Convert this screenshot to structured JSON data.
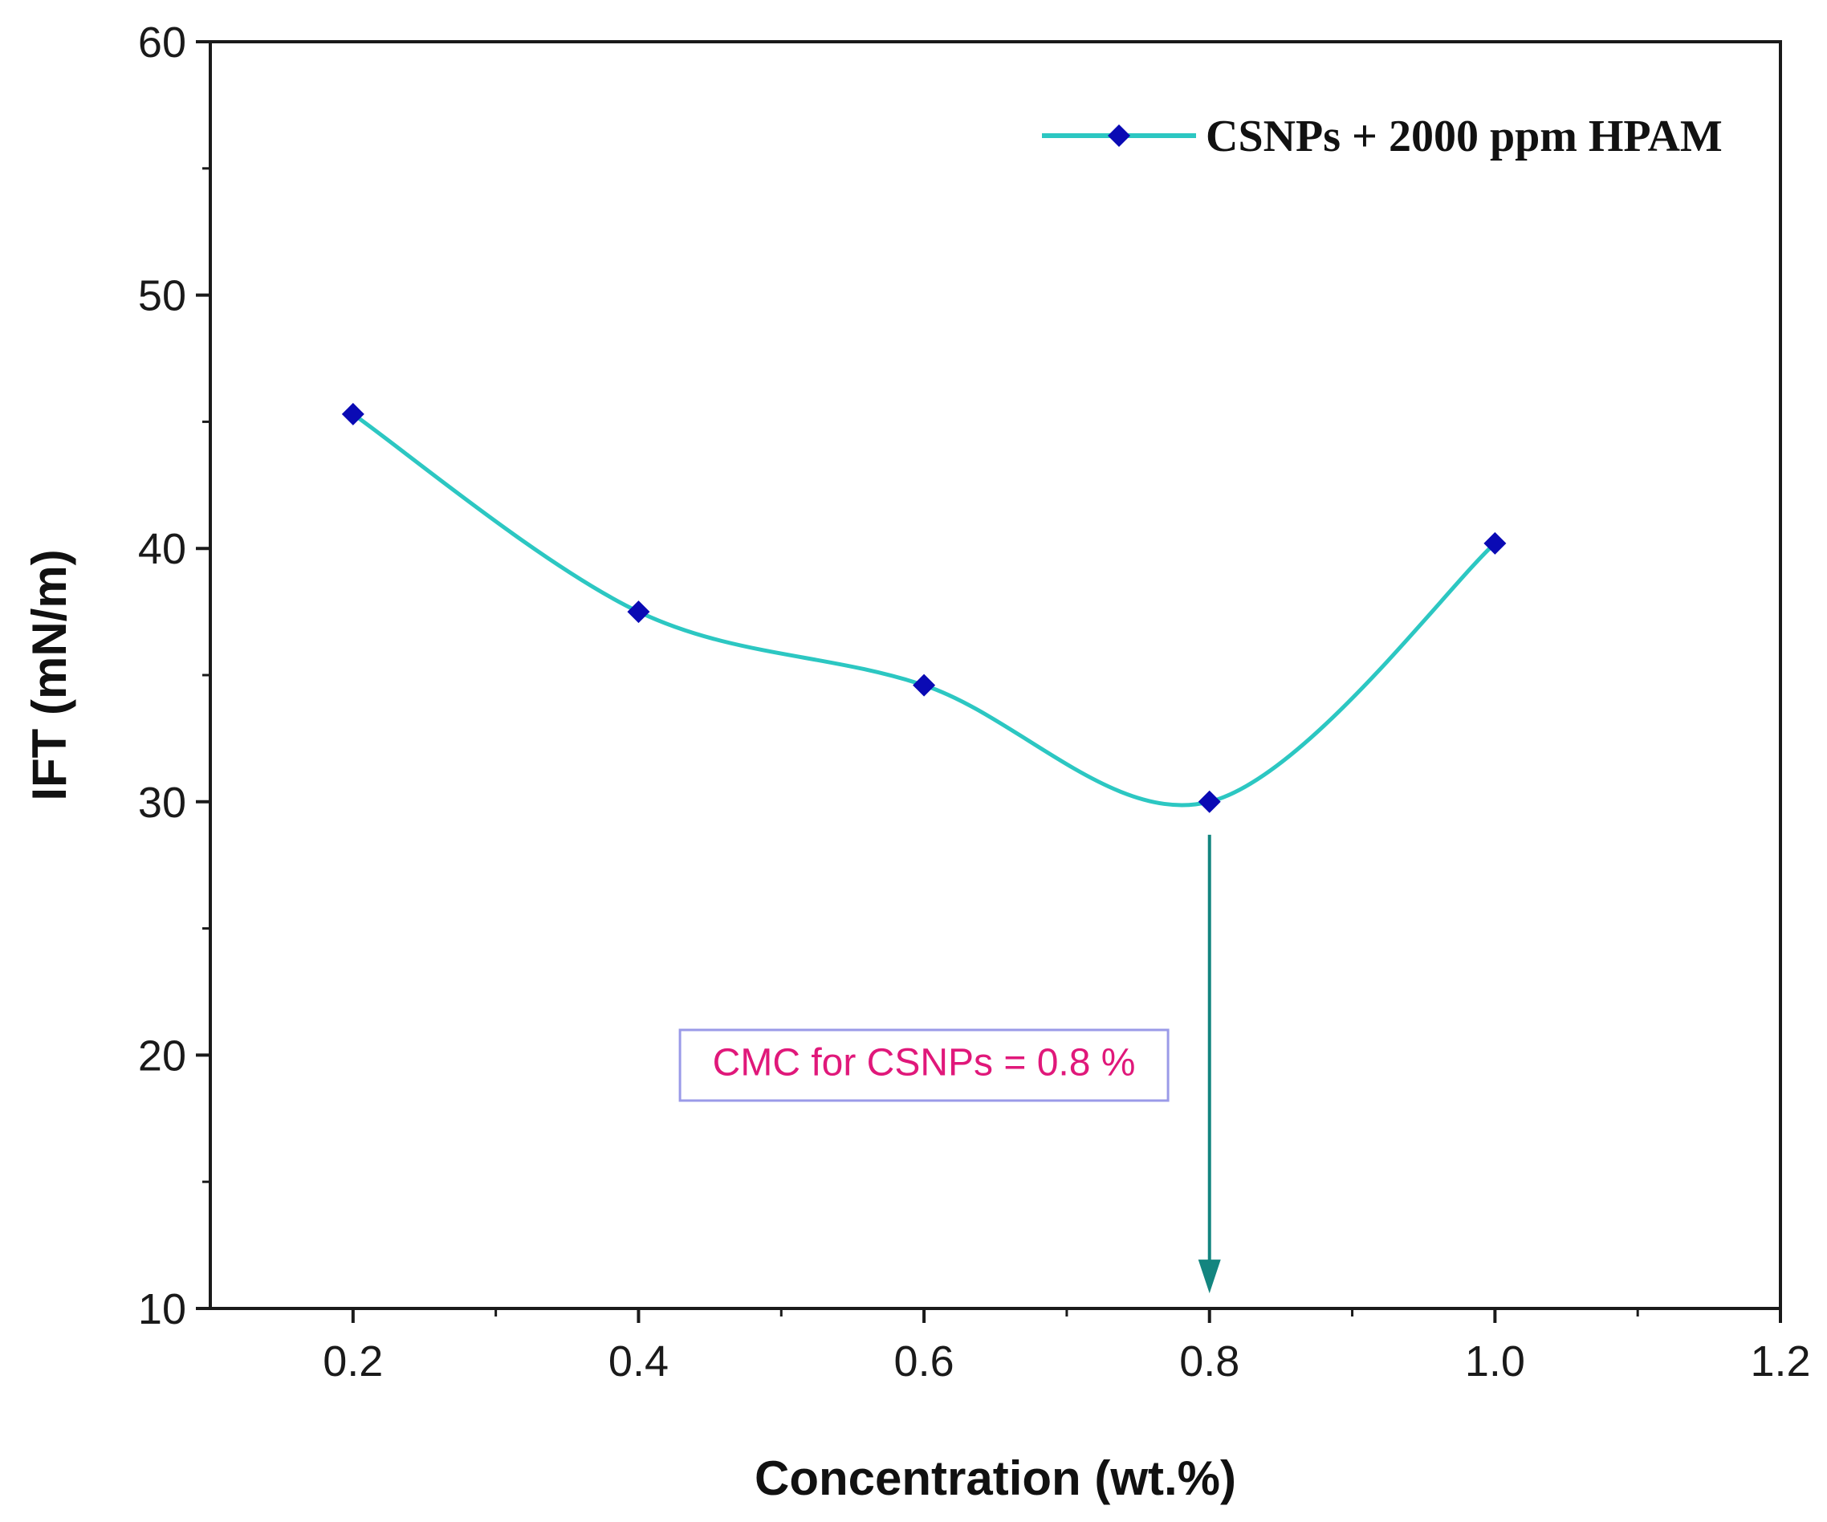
{
  "chart_data": {
    "type": "line",
    "title": "",
    "xlabel": "Concentration (wt.%)",
    "ylabel": "IFT (mN/m)",
    "xlim": [
      0.1,
      1.2
    ],
    "ylim": [
      10,
      60
    ],
    "x_ticks": [
      0.2,
      0.4,
      0.6,
      0.8,
      1.0,
      1.2
    ],
    "x_tick_labels": [
      "0.2",
      "0.4",
      "0.6",
      "0.8",
      "1.0",
      "1.2"
    ],
    "y_ticks": [
      10,
      20,
      30,
      40,
      50,
      60
    ],
    "y_tick_labels": [
      "10",
      "20",
      "30",
      "40",
      "50",
      "60"
    ],
    "x_minor_ticks": [
      0.3,
      0.5,
      0.7,
      0.9,
      1.1
    ],
    "y_minor_ticks": [
      15,
      25,
      35,
      45,
      55
    ],
    "series": [
      {
        "name": "CSNPs + 2000 ppm HPAM",
        "x": [
          0.2,
          0.4,
          0.6,
          0.8,
          1.0
        ],
        "values": [
          45.3,
          37.5,
          34.6,
          30.0,
          40.2
        ],
        "line_color": "#2cc7c2",
        "marker_color": "#0a0ab4",
        "marker": "diamond"
      }
    ],
    "legend": {
      "position": "top-right",
      "label": "CSNPs + 2000 ppm HPAM"
    },
    "annotations": [
      {
        "text": "CMC for CSNPs = 0.8 %",
        "text_color": "#e0187a",
        "box_border_color": "#9a9ae8",
        "arrow_color": "#13857f",
        "arrow_x": 0.8,
        "arrow_from_y": 28.7,
        "arrow_to_y": 10.6,
        "label_x": 0.6,
        "label_y": 19.6
      }
    ],
    "grid": false
  }
}
